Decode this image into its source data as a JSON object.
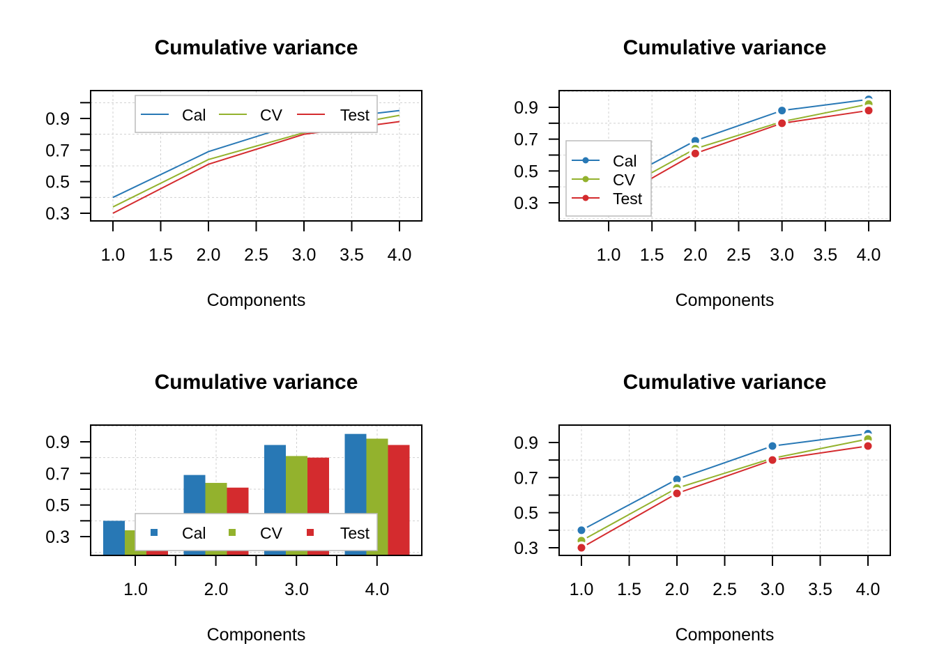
{
  "chart_data": [
    {
      "type": "line",
      "title": "Cumulative variance",
      "xlabel": "Components",
      "x": [
        1,
        2,
        3,
        4
      ],
      "xticks": [
        "1.0",
        "1.5",
        "2.0",
        "2.5",
        "3.0",
        "3.5",
        "4.0"
      ],
      "yticks": [
        "0.3",
        "0.5",
        "0.7",
        "0.9"
      ],
      "ylim": [
        0.25,
        0.99
      ],
      "markers": false,
      "legend": "top",
      "grid": true,
      "series": [
        {
          "name": "Cal",
          "values": [
            0.4,
            0.69,
            0.88,
            0.95
          ]
        },
        {
          "name": "CV",
          "values": [
            0.34,
            0.64,
            0.81,
            0.92
          ]
        },
        {
          "name": "Test",
          "values": [
            0.3,
            0.61,
            0.8,
            0.88
          ]
        }
      ]
    },
    {
      "type": "line",
      "title": "Cumulative variance",
      "xlabel": "Components",
      "x": [
        1,
        2,
        3,
        4
      ],
      "xticks": [
        "1.0",
        "1.5",
        "2.0",
        "2.5",
        "3.0",
        "3.5",
        "4.0"
      ],
      "yticks": [
        "0.3",
        "0.5",
        "0.7",
        "0.9"
      ],
      "ylim": [
        0.19,
        0.97
      ],
      "markers": true,
      "legend": "bottom-left",
      "grid": true,
      "series": [
        {
          "name": "Cal",
          "values": [
            0.4,
            0.69,
            0.88,
            0.95
          ]
        },
        {
          "name": "CV",
          "values": [
            0.34,
            0.64,
            0.81,
            0.92
          ]
        },
        {
          "name": "Test",
          "values": [
            0.3,
            0.61,
            0.8,
            0.88
          ]
        }
      ]
    },
    {
      "type": "bar",
      "title": "Cumulative variance",
      "xlabel": "Components",
      "categories": [
        "1.0",
        "2.0",
        "3.0",
        "4.0"
      ],
      "yticks": [
        "0.3",
        "0.5",
        "0.7",
        "0.9"
      ],
      "ylim": [
        0.18,
        0.99
      ],
      "legend": "bottom",
      "grid": true,
      "series": [
        {
          "name": "Cal",
          "values": [
            0.4,
            0.69,
            0.88,
            0.95
          ]
        },
        {
          "name": "CV",
          "values": [
            0.34,
            0.64,
            0.81,
            0.92
          ]
        },
        {
          "name": "Test",
          "values": [
            0.3,
            0.61,
            0.8,
            0.88
          ]
        }
      ]
    },
    {
      "type": "line",
      "title": "Cumulative variance",
      "xlabel": "Components",
      "x": [
        1,
        2,
        3,
        4
      ],
      "xticks": [
        "1.0",
        "1.5",
        "2.0",
        "2.5",
        "3.0",
        "3.5",
        "4.0"
      ],
      "yticks": [
        "0.3",
        "0.5",
        "0.7",
        "0.9"
      ],
      "ylim": [
        0.25,
        0.99
      ],
      "markers": true,
      "legend": "none",
      "grid": true,
      "series": [
        {
          "name": "Cal",
          "values": [
            0.4,
            0.69,
            0.88,
            0.95
          ]
        },
        {
          "name": "CV",
          "values": [
            0.34,
            0.64,
            0.81,
            0.92
          ]
        },
        {
          "name": "Test",
          "values": [
            0.3,
            0.61,
            0.8,
            0.88
          ]
        }
      ]
    }
  ],
  "colors": {
    "Cal": "#2878b5",
    "CV": "#93b22d",
    "Test": "#d42b2e"
  }
}
